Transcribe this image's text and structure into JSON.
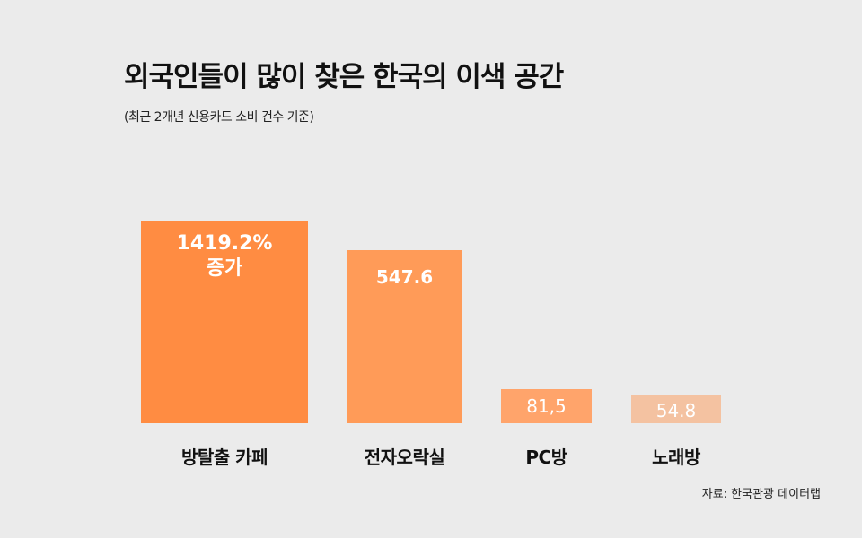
{
  "chart_data": {
    "type": "bar",
    "title": "외국인들이 많이 찾은 한국의 이색 공간",
    "subtitle": "(최근 2개년 신용카드 소비 건수 기준)",
    "categories": [
      "방탈출 카페",
      "전자오락실",
      "PC방",
      "노래방"
    ],
    "values": [
      1419.2,
      547.6,
      81.5,
      54.8
    ],
    "data_labels": [
      "1419.2%\n증가",
      "547.6",
      "81,5",
      "54.8"
    ],
    "colors": [
      "#ff8c42",
      "#ff9b58",
      "#ffa46b",
      "#f4c2a1"
    ],
    "xlabel": "",
    "ylabel": "",
    "grid": false,
    "source": "자료: 한국관광 데이터랩"
  }
}
